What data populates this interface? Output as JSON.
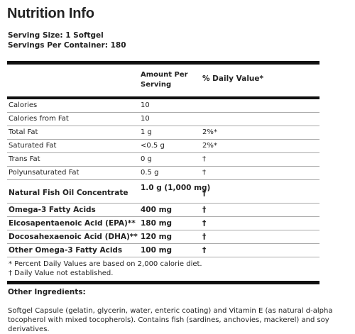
{
  "title": "Nutrition Info",
  "serving": {
    "size": "Serving Size: 1 Softgel",
    "per_container": "Servings Per Container: 180"
  },
  "table": {
    "header": {
      "amount_line1": "Amount Per",
      "amount_line2": "Serving",
      "daily_value": "% Daily Value*"
    },
    "rows": [
      {
        "name": "Calories",
        "amount": "10",
        "dv": ""
      },
      {
        "name": "Calories from Fat",
        "amount": "10",
        "dv": ""
      },
      {
        "name": "Total Fat",
        "amount": "1 g",
        "dv": "2%*"
      },
      {
        "name": "Saturated Fat",
        "amount": "<0.5 g",
        "dv": "2%*"
      },
      {
        "name": "Trans Fat",
        "amount": "0 g",
        "dv": "†"
      },
      {
        "name": "Polyunsaturated Fat",
        "amount": "0.5 g",
        "dv": "†"
      },
      {
        "name": "Natural Fish Oil Concentrate",
        "amount": "1.0 g (1,000 mg)",
        "dv": "†"
      },
      {
        "name": "Omega-3 Fatty Acids",
        "amount": "400 mg",
        "dv": "†"
      },
      {
        "name": "Eicosapentaenoic Acid (EPA)**",
        "amount": "180 mg",
        "dv": "†"
      },
      {
        "name": "Docosahexaenoic Acid (DHA)**",
        "amount": "120 mg",
        "dv": "†"
      },
      {
        "name": "Other Omega-3 Fatty Acids",
        "amount": "100 mg",
        "dv": "†"
      }
    ],
    "footnotes": [
      "* Percent Daily Values are based on 2,000 calorie diet.",
      "† Daily Value not established."
    ]
  },
  "other_ingredients": {
    "title": "Other Ingredients:",
    "text": "Softgel Capsule (gelatin, glycerin, water, enteric coating) and Vitamin E (as natural d-alpha tocopherol with mixed tocopherols).  Contains fish (sardines, anchovies, mackerel) and soy derivatives."
  }
}
